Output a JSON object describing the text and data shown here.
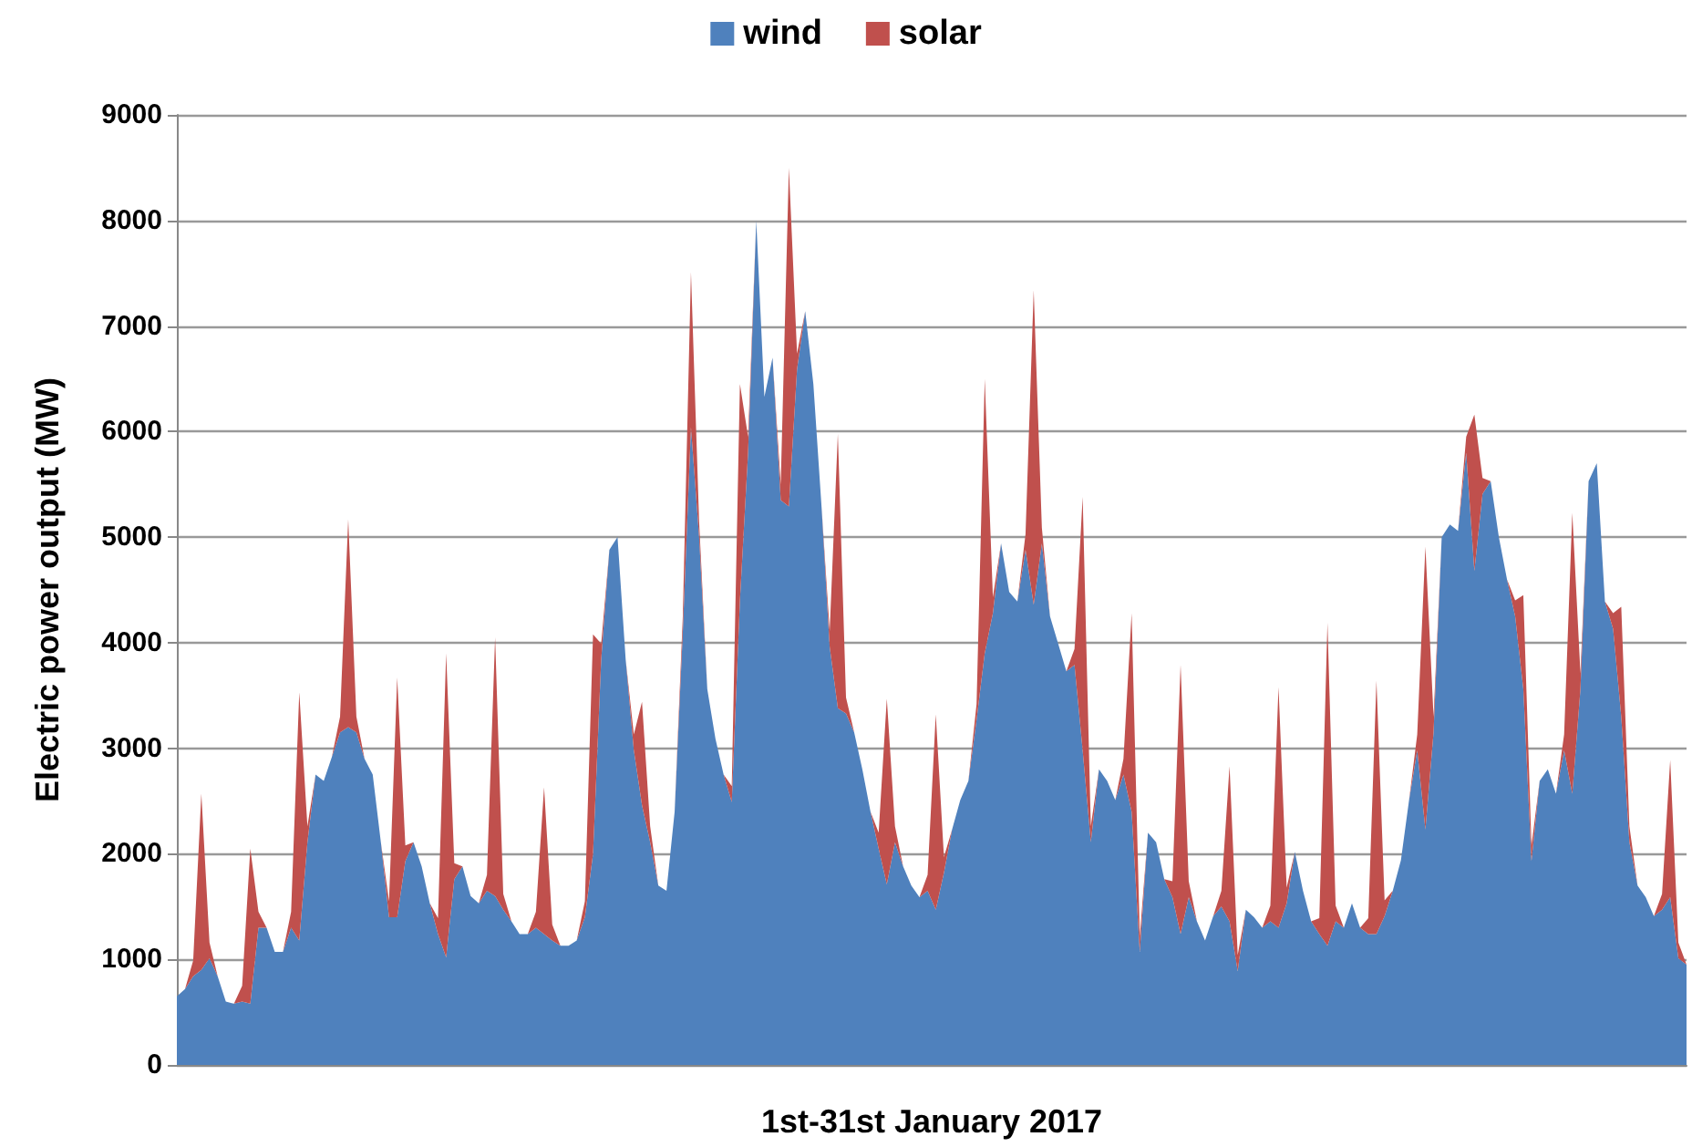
{
  "chart_data": {
    "type": "area",
    "stacked": true,
    "xlabel": "1st-31st January 2017",
    "ylabel": "Electric power output (MW)",
    "categories": [
      null,
      null,
      null,
      null,
      null,
      null,
      null,
      null,
      null,
      null,
      null,
      null,
      null,
      null,
      null,
      null,
      null,
      null,
      null,
      null,
      null,
      null,
      null,
      null,
      null,
      null,
      null,
      null,
      null,
      null,
      null,
      null,
      null,
      null,
      null,
      null,
      null,
      null,
      null,
      null,
      null,
      null,
      null,
      null,
      null,
      null,
      null,
      null,
      null,
      null,
      null,
      null,
      null,
      null,
      null,
      null,
      null,
      null,
      null,
      null,
      null,
      null,
      null,
      null,
      null,
      null,
      null,
      null,
      null,
      null,
      null,
      null,
      null,
      null,
      null,
      null,
      null,
      null,
      null,
      null,
      null,
      null,
      null,
      null,
      null,
      null,
      null,
      null,
      null,
      null,
      null,
      null,
      null,
      null,
      null,
      null,
      null,
      null,
      null,
      null,
      null,
      null,
      null,
      null,
      null,
      null,
      null,
      null,
      null,
      null,
      null,
      null,
      null,
      null,
      null,
      null,
      null,
      null,
      null,
      null,
      null,
      null,
      null,
      null,
      null,
      null,
      null,
      null,
      null,
      null,
      null,
      null,
      null,
      null,
      null,
      null,
      null,
      null,
      null,
      null,
      null,
      null,
      null,
      null,
      null,
      null,
      null,
      null,
      null,
      null,
      null,
      null,
      null,
      null,
      null,
      null,
      null,
      null,
      null,
      null,
      null,
      null,
      null,
      null,
      null,
      null,
      null,
      null,
      null,
      null,
      null,
      null,
      null,
      null,
      null,
      null,
      null,
      null,
      null,
      null,
      null,
      null,
      null,
      null,
      null,
      null
    ],
    "series": [
      {
        "name": "wind",
        "color": "#4f81bd",
        "values": [
          650,
          720,
          840,
          900,
          1010,
          840,
          600,
          580,
          600,
          580,
          1300,
          1300,
          1070,
          1070,
          1300,
          1180,
          2110,
          2750,
          2690,
          2920,
          3150,
          3200,
          3150,
          2900,
          2750,
          2110,
          1400,
          1400,
          1930,
          2110,
          1880,
          1530,
          1240,
          1020,
          1760,
          1880,
          1600,
          1530,
          1650,
          1600,
          1470,
          1360,
          1240,
          1240,
          1300,
          1240,
          1180,
          1130,
          1130,
          1180,
          1400,
          2000,
          3840,
          4880,
          5000,
          3840,
          2980,
          2460,
          2110,
          1700,
          1650,
          2400,
          4100,
          6040,
          5000,
          3560,
          3090,
          2750,
          2490,
          4400,
          5800,
          8000,
          6330,
          6700,
          5350,
          5290,
          6590,
          7140,
          6450,
          5290,
          3960,
          3380,
          3330,
          3150,
          2800,
          2400,
          2050,
          1710,
          2110,
          1880,
          1700,
          1590,
          1650,
          1470,
          1820,
          2230,
          2510,
          2690,
          3270,
          3900,
          4280,
          4940,
          4480,
          4390,
          4880,
          4360,
          4940,
          4250,
          3990,
          3730,
          3790,
          2980,
          2110,
          2800,
          2690,
          2510,
          2750,
          2400,
          1070,
          2200,
          2110,
          1760,
          1590,
          1240,
          1590,
          1360,
          1180,
          1410,
          1500,
          1360,
          890,
          1470,
          1400,
          1300,
          1360,
          1300,
          1530,
          2020,
          1650,
          1360,
          1240,
          1130,
          1360,
          1300,
          1530,
          1300,
          1240,
          1240,
          1410,
          1650,
          1940,
          2510,
          2980,
          2230,
          3150,
          5000,
          5120,
          5060,
          5800,
          4680,
          5410,
          5530,
          5000,
          4600,
          4250,
          3560,
          1930,
          2690,
          2800,
          2570,
          2980,
          2570,
          3560,
          5530,
          5700,
          4390,
          4130,
          3300,
          2110,
          1700,
          1590,
          1410,
          1470,
          1590,
          1010,
          950
        ]
      },
      {
        "name": "solar",
        "color": "#c0504d",
        "values": [
          0,
          0,
          150,
          1670,
          150,
          0,
          0,
          0,
          150,
          1470,
          150,
          0,
          0,
          0,
          150,
          2350,
          150,
          0,
          0,
          0,
          150,
          1970,
          150,
          0,
          0,
          0,
          150,
          2270,
          150,
          0,
          0,
          0,
          150,
          2880,
          150,
          0,
          0,
          0,
          150,
          2450,
          150,
          0,
          0,
          0,
          150,
          1390,
          150,
          0,
          0,
          0,
          150,
          2080,
          150,
          0,
          0,
          0,
          150,
          980,
          150,
          0,
          0,
          0,
          150,
          1470,
          150,
          0,
          0,
          0,
          150,
          2050,
          150,
          0,
          0,
          0,
          150,
          3210,
          150,
          0,
          0,
          0,
          150,
          2600,
          150,
          0,
          0,
          0,
          150,
          1760,
          150,
          0,
          0,
          0,
          150,
          1850,
          150,
          0,
          0,
          0,
          150,
          2600,
          150,
          0,
          0,
          0,
          150,
          2980,
          150,
          0,
          0,
          0,
          150,
          2400,
          150,
          0,
          0,
          0,
          150,
          1880,
          150,
          0,
          0,
          0,
          150,
          2550,
          150,
          0,
          0,
          0,
          150,
          1470,
          150,
          0,
          0,
          0,
          150,
          2280,
          150,
          0,
          0,
          0,
          150,
          3060,
          150,
          0,
          0,
          0,
          150,
          2400,
          150,
          0,
          0,
          0,
          150,
          2680,
          150,
          0,
          0,
          0,
          150,
          1480,
          150,
          0,
          0,
          0,
          150,
          890,
          150,
          0,
          0,
          0,
          150,
          2660,
          150,
          0,
          0,
          0,
          150,
          1040,
          150,
          0,
          0,
          0,
          150,
          1300,
          150,
          0
        ]
      }
    ],
    "ylim": [
      0,
      9000
    ],
    "yticks": [
      0,
      1000,
      2000,
      3000,
      4000,
      5000,
      6000,
      7000,
      8000,
      9000
    ],
    "grid": "y",
    "legend": "top"
  }
}
